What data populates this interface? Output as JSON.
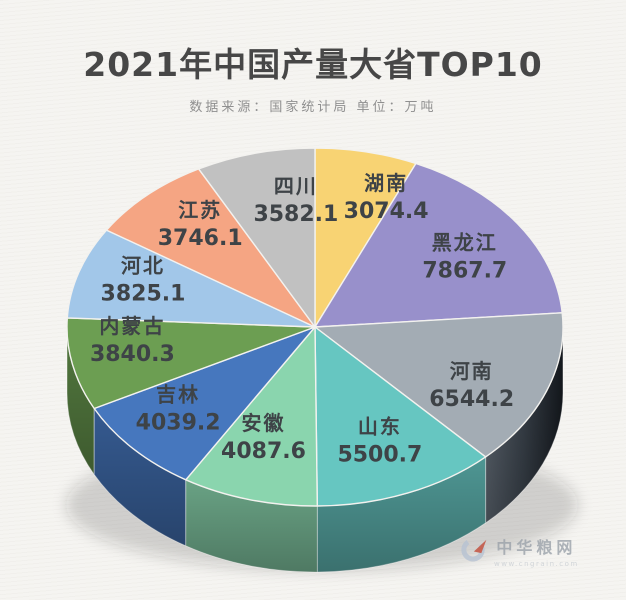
{
  "chart_data": {
    "type": "pie",
    "style": "3d-pie",
    "title": "2021年中国产量大省TOP10",
    "subtitle": "数据来源：国家统计局  单位：万吨",
    "unit": "万吨",
    "start_angle_deg": 0,
    "direction": "clockwise",
    "legend_position": "none",
    "label_style": "name-and-value-on-slice",
    "categories": [
      "湖南",
      "黑龙江",
      "河南",
      "山东",
      "安徽",
      "吉林",
      "内蒙古",
      "河北",
      "江苏",
      "四川"
    ],
    "values": [
      3074.4,
      7867.7,
      6544.2,
      5500.7,
      4087.6,
      4039.2,
      3840.3,
      3825.1,
      3746.1,
      3582.1
    ],
    "colors": [
      "#F8D373",
      "#9890CB",
      "#A3ACB4",
      "#66C6C1",
      "#8AD5AE",
      "#4677BE",
      "#6C9E52",
      "#A2C7E9",
      "#F5A583",
      "#C1C1C1"
    ],
    "label_text_color": "#3E4347"
  },
  "watermark": {
    "name": "中华粮网",
    "url": "www.cngrain.com"
  }
}
